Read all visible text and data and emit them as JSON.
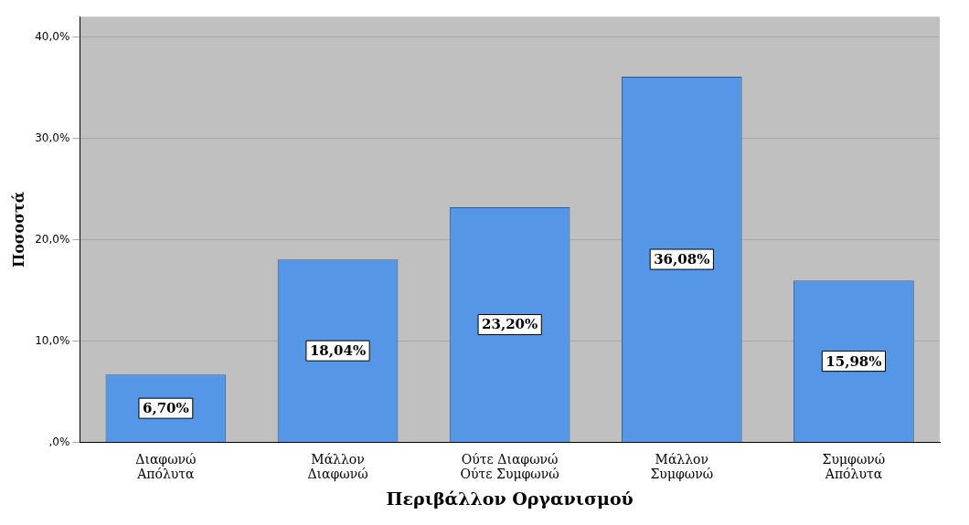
{
  "chart_data": {
    "type": "bar",
    "xlabel": "Περιβάλλον Οργανισμού",
    "ylabel": "Ποσοστά",
    "categories": [
      "Διαφωνώ\nΑπόλυτα",
      "Μάλλον\nΔιαφωνώ",
      "Ούτε Διαφωνώ\nΟύτε Συμφωνώ",
      "Μάλλον\nΣυμφωνώ",
      "Συμφωνώ\nΑπόλυτα"
    ],
    "values": [
      6.7,
      18.04,
      23.2,
      36.08,
      15.98
    ],
    "value_labels": [
      "6,70%",
      "18,04%",
      "23,20%",
      "36,08%",
      "15,98%"
    ],
    "color": "#5596e6",
    "ylim": [
      0,
      42
    ],
    "yticks": [
      {
        "value": 0,
        "label": ",0%"
      },
      {
        "value": 10,
        "label": "10,0%"
      },
      {
        "value": 20,
        "label": "20,0%"
      },
      {
        "value": 30,
        "label": "30,0%"
      },
      {
        "value": 40,
        "label": "40,0%"
      }
    ],
    "grid": "y",
    "legend": false
  }
}
